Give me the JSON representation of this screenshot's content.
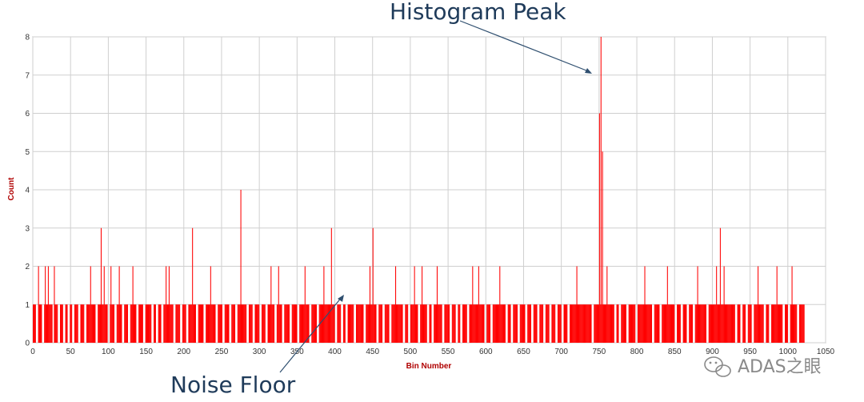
{
  "chart_data": {
    "type": "bar",
    "xlabel": "Bin Number",
    "ylabel": "Count",
    "xlim": [
      0,
      1050
    ],
    "ylim": [
      0,
      8
    ],
    "x_ticks": [
      "0",
      "50",
      "100",
      "150",
      "200",
      "250",
      "300",
      "350",
      "400",
      "450",
      "500",
      "550",
      "600",
      "650",
      "700",
      "750",
      "800",
      "850",
      "900",
      "950",
      "1000",
      "1050"
    ],
    "y_ticks": [
      "0",
      "1",
      "2",
      "3",
      "4",
      "5",
      "6",
      "7",
      "8"
    ],
    "grid": true,
    "color": "#ff0000",
    "annotations": [
      {
        "text": "Histogram Peak"
      },
      {
        "text": "Noise Floor"
      }
    ],
    "peaks": [
      {
        "bin": 752,
        "value": 8
      },
      {
        "bin": 750,
        "value": 6
      },
      {
        "bin": 754,
        "value": 5
      },
      {
        "bin": 275,
        "value": 4
      },
      {
        "bin": 90,
        "value": 3
      },
      {
        "bin": 211,
        "value": 3
      },
      {
        "bin": 395,
        "value": 3
      },
      {
        "bin": 450,
        "value": 3
      },
      {
        "bin": 910,
        "value": 3
      }
    ],
    "bins_at_2": [
      7,
      16,
      20,
      28,
      76,
      94,
      103,
      114,
      132,
      176,
      180,
      235,
      315,
      325,
      360,
      385,
      446,
      480,
      505,
      515,
      535,
      582,
      590,
      618,
      720,
      760,
      810,
      840,
      880,
      905,
      915,
      960,
      985,
      1005
    ],
    "baseline_value": 1,
    "baseline_gaps": [
      4,
      12,
      26,
      33,
      40,
      46,
      52,
      60,
      68,
      83,
      99,
      108,
      118,
      126,
      137,
      146,
      157,
      163,
      170,
      186,
      195,
      203,
      216,
      226,
      242,
      251,
      260,
      268,
      283,
      291,
      300,
      308,
      320,
      330,
      340,
      350,
      366,
      376,
      400,
      408,
      414,
      425,
      438,
      455,
      463,
      472,
      490,
      497,
      510,
      522,
      528,
      542,
      552,
      560,
      566,
      575,
      598,
      606,
      626,
      633,
      642,
      652,
      660,
      668,
      676,
      684,
      692,
      700,
      708,
      740,
      770,
      776,
      786,
      798,
      820,
      830,
      850,
      858,
      866,
      874,
      892,
      930,
      937,
      944,
      952,
      968,
      975,
      993,
      1000,
      1012,
      1022
    ]
  },
  "watermark": {
    "text": "ADAS之眼",
    "icon": "wechat-icon"
  }
}
